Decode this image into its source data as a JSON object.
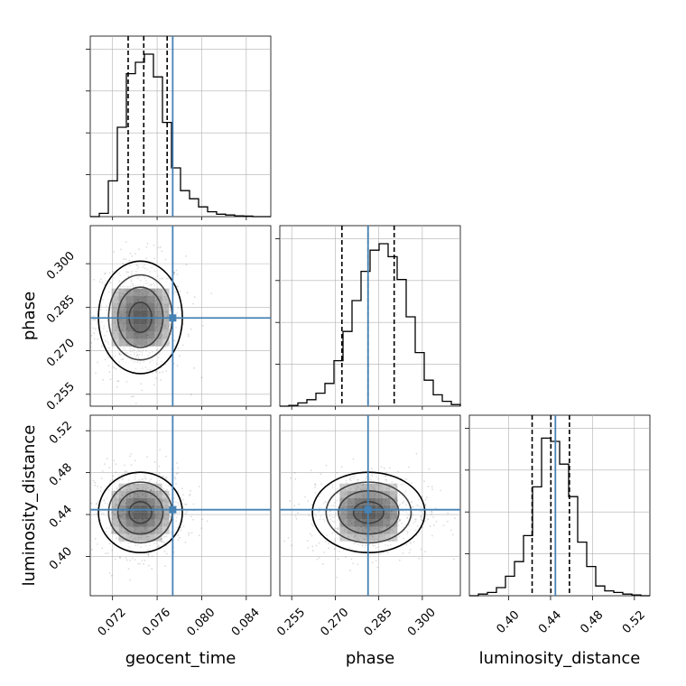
{
  "chart_data": {
    "type": "corner",
    "parameters": [
      "geocent_time",
      "phase",
      "luminosity_distance"
    ],
    "ranges": {
      "geocent_time": [
        0.07,
        0.0862
      ],
      "phase": [
        0.2509,
        0.3131
      ],
      "luminosity_distance": [
        0.3625,
        0.5348
      ]
    },
    "ticks": {
      "geocent_time": [
        "0.072",
        "0.076",
        "0.080",
        "0.084"
      ],
      "phase": [
        "0.255",
        "0.270",
        "0.285",
        "0.300"
      ],
      "luminosity_distance": [
        "0.40",
        "0.44",
        "0.48",
        "0.52"
      ]
    },
    "truths": {
      "geocent_time": 0.0774,
      "phase": 0.2813,
      "luminosity_distance": 0.4446
    },
    "quantiles": {
      "geocent_time": [
        0.0734,
        0.0748,
        0.0769
      ],
      "phase": [
        0.2723,
        0.2813,
        0.2903
      ],
      "luminosity_distance": [
        0.4224,
        0.4403,
        0.458
      ]
    },
    "histograms": {
      "geocent_time": [
        0.0,
        0.02,
        0.22,
        0.55,
        0.88,
        0.95,
        1.0,
        0.86,
        0.58,
        0.3,
        0.16,
        0.11,
        0.06,
        0.03,
        0.015,
        0.01,
        0.005,
        0.003,
        0.0,
        0.0
      ],
      "phase": [
        0.0,
        0.005,
        0.02,
        0.04,
        0.08,
        0.14,
        0.28,
        0.46,
        0.65,
        0.83,
        0.96,
        1.0,
        0.92,
        0.78,
        0.55,
        0.33,
        0.16,
        0.07,
        0.03,
        0.01
      ],
      "luminosity_distance": [
        0.0,
        0.01,
        0.02,
        0.05,
        0.12,
        0.21,
        0.37,
        0.67,
        0.97,
        0.95,
        0.81,
        0.61,
        0.33,
        0.18,
        0.06,
        0.03,
        0.02,
        0.01,
        0.005,
        0.0
      ]
    },
    "centers": {
      "geocent_time": 0.0745,
      "phase": 0.2815,
      "luminosity_distance": 0.442
    },
    "colors": {
      "truth": "#4682b4",
      "hist": "#000000",
      "grid": "#b0b0b0",
      "density": "#000000"
    },
    "grid": true
  }
}
